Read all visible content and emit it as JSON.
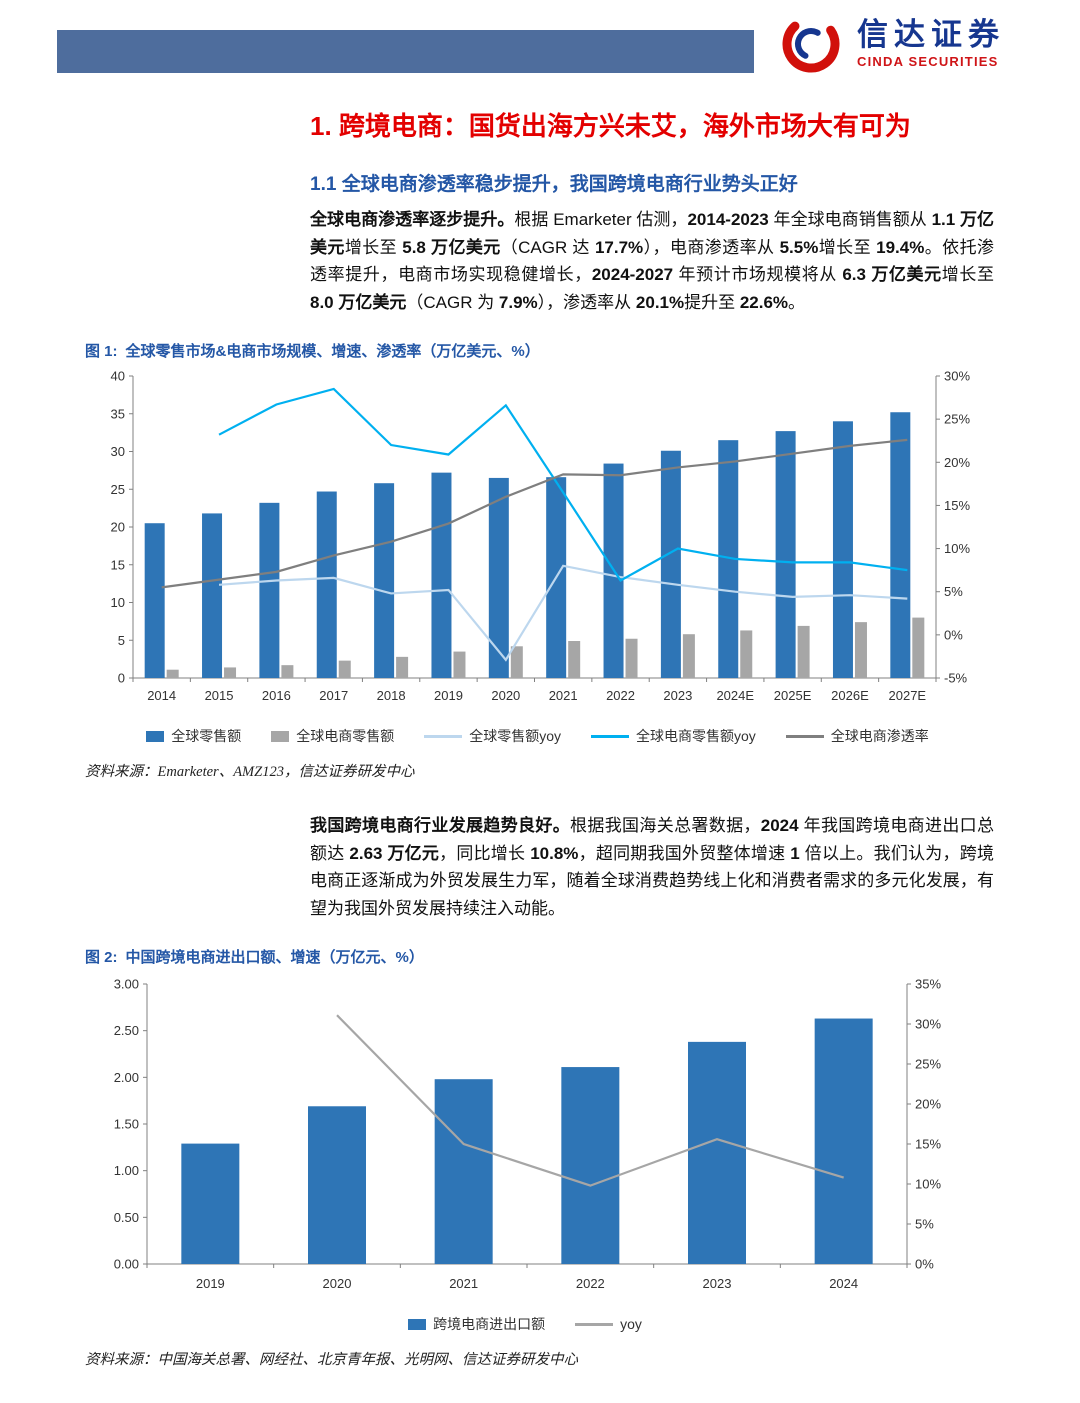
{
  "header": {
    "logo_cn": "信达证券",
    "logo_en": "CINDA SECURITIES"
  },
  "section": {
    "title_num": "1.",
    "title": "跨境电商：国货出海方兴未艾，海外市场大有可为",
    "subtitle": "1.1 全球电商渗透率稳步提升，我国跨境电商行业势头正好"
  },
  "paragraphs": {
    "p1": [
      {
        "text": "全球电商渗透率逐步提升。",
        "bold": true
      },
      {
        "text": "根据 Emarketer 估测，",
        "bold": false
      },
      {
        "text": "2014-2023",
        "bold": true
      },
      {
        "text": " 年全球电商销售额从 ",
        "bold": false
      },
      {
        "text": "1.1 万亿美元",
        "bold": true
      },
      {
        "text": "增长至 ",
        "bold": false
      },
      {
        "text": "5.8 万亿美元",
        "bold": true
      },
      {
        "text": "（CAGR 达 ",
        "bold": false
      },
      {
        "text": "17.7%",
        "bold": true
      },
      {
        "text": "），电商渗透率从 ",
        "bold": false
      },
      {
        "text": "5.5%",
        "bold": true
      },
      {
        "text": "增长至 ",
        "bold": false
      },
      {
        "text": "19.4%",
        "bold": true
      },
      {
        "text": "。依托渗透率提升，电商市场实现稳健增长，",
        "bold": false
      },
      {
        "text": "2024-2027",
        "bold": true
      },
      {
        "text": " 年预计市场规模将从 ",
        "bold": false
      },
      {
        "text": "6.3 万亿美元",
        "bold": true
      },
      {
        "text": "增长至 ",
        "bold": false
      },
      {
        "text": "8.0 万亿美元",
        "bold": true
      },
      {
        "text": "（CAGR 为 ",
        "bold": false
      },
      {
        "text": "7.9%",
        "bold": true
      },
      {
        "text": "），渗透率从 ",
        "bold": false
      },
      {
        "text": "20.1%",
        "bold": true
      },
      {
        "text": "提升至 ",
        "bold": false
      },
      {
        "text": "22.6%",
        "bold": true
      },
      {
        "text": "。",
        "bold": false
      }
    ],
    "p2": [
      {
        "text": "我国跨境电商行业发展趋势良好。",
        "bold": true
      },
      {
        "text": "根据我国海关总署数据，",
        "bold": false
      },
      {
        "text": "2024",
        "bold": true
      },
      {
        "text": " 年我国跨境电商进出口总额达 ",
        "bold": false
      },
      {
        "text": "2.63 万亿元",
        "bold": true
      },
      {
        "text": "，同比增长 ",
        "bold": false
      },
      {
        "text": "10.8%",
        "bold": true
      },
      {
        "text": "，超同期我国外贸整体增速 ",
        "bold": false
      },
      {
        "text": "1",
        "bold": true
      },
      {
        "text": " 倍以上。我们认为，跨境电商正逐渐成为外贸发展生力军，随着全球消费趋势线上化和消费者需求的多元化发展，有望为我国外贸发展持续注入动能。",
        "bold": false
      }
    ]
  },
  "figure1": {
    "caption_label": "图 1:",
    "caption": "全球零售市场&电商市场规模、增速、渗透率（万亿美元、%）",
    "source": "资料来源：Emarketer、AMZ123，信达证券研发中心"
  },
  "figure2": {
    "caption_label": "图 2:",
    "caption": "中国跨境电商进出口额、增速（万亿元、%）",
    "source": "资料来源：中国海关总署、网经社、北京青年报、光明网、信达证券研发中心"
  },
  "chart_data": [
    {
      "type": "bar",
      "subtype": "combo-bar-line",
      "title": "全球零售市场&电商市场规模、增速、渗透率（万亿美元、%）",
      "categories": [
        "2014",
        "2015",
        "2016",
        "2017",
        "2018",
        "2019",
        "2020",
        "2021",
        "2022",
        "2023",
        "2024E",
        "2025E",
        "2026E",
        "2027E"
      ],
      "left_axis": {
        "min": 0,
        "max": 40,
        "step": 5,
        "dec": 0
      },
      "right_axis": {
        "min": -5,
        "max": 30,
        "step": 5,
        "suffix": "%"
      },
      "legend_position": "bottom",
      "grid": false,
      "bar_series": [
        {
          "name": "全球零售额",
          "color": "#2e75b6",
          "values": [
            20.5,
            21.8,
            23.2,
            24.7,
            25.8,
            27.2,
            26.5,
            26.6,
            28.4,
            30.1,
            31.5,
            32.7,
            34.0,
            35.2
          ]
        },
        {
          "name": "全球电商零售额",
          "color": "#a6a6a6",
          "values": [
            1.1,
            1.4,
            1.7,
            2.3,
            2.8,
            3.5,
            4.2,
            4.9,
            5.2,
            5.8,
            6.3,
            6.9,
            7.4,
            8.0
          ]
        }
      ],
      "line_series": [
        {
          "name": "全球零售额yoy",
          "color": "#bdd7ee",
          "values": [
            null,
            5.8,
            6.3,
            6.6,
            4.8,
            5.2,
            -2.9,
            8.0,
            6.7,
            5.8,
            5.0,
            4.4,
            4.6,
            4.2
          ]
        },
        {
          "name": "全球电商零售额yoy",
          "color": "#00b0f0",
          "values": [
            null,
            23.2,
            26.7,
            28.5,
            22.0,
            20.9,
            26.6,
            16.5,
            6.3,
            10.0,
            8.8,
            8.4,
            8.4,
            7.5
          ]
        },
        {
          "name": "全球电商渗透率",
          "color": "#7f7f7f",
          "values": [
            5.5,
            6.4,
            7.3,
            9.2,
            10.8,
            12.9,
            16.0,
            18.6,
            18.5,
            19.4,
            20.1,
            21.0,
            21.9,
            22.6
          ]
        }
      ]
    },
    {
      "type": "bar",
      "subtype": "combo-bar-line",
      "title": "中国跨境电商进出口额、增速（万亿元、%）",
      "categories": [
        "2019",
        "2020",
        "2021",
        "2022",
        "2023",
        "2024"
      ],
      "left_axis": {
        "min": 0,
        "max": 3,
        "step": 0.5,
        "dec": 2
      },
      "right_axis": {
        "min": 0,
        "max": 35,
        "step": 5,
        "suffix": "%"
      },
      "legend_position": "bottom",
      "grid": false,
      "bar_series": [
        {
          "name": "跨境电商进出口额",
          "color": "#2e75b6",
          "values": [
            1.29,
            1.69,
            1.98,
            2.11,
            2.38,
            2.63
          ]
        }
      ],
      "line_series": [
        {
          "name": "yoy",
          "color": "#a6a6a6",
          "values": [
            null,
            31.1,
            15.0,
            9.8,
            15.6,
            10.8
          ]
        }
      ]
    }
  ]
}
